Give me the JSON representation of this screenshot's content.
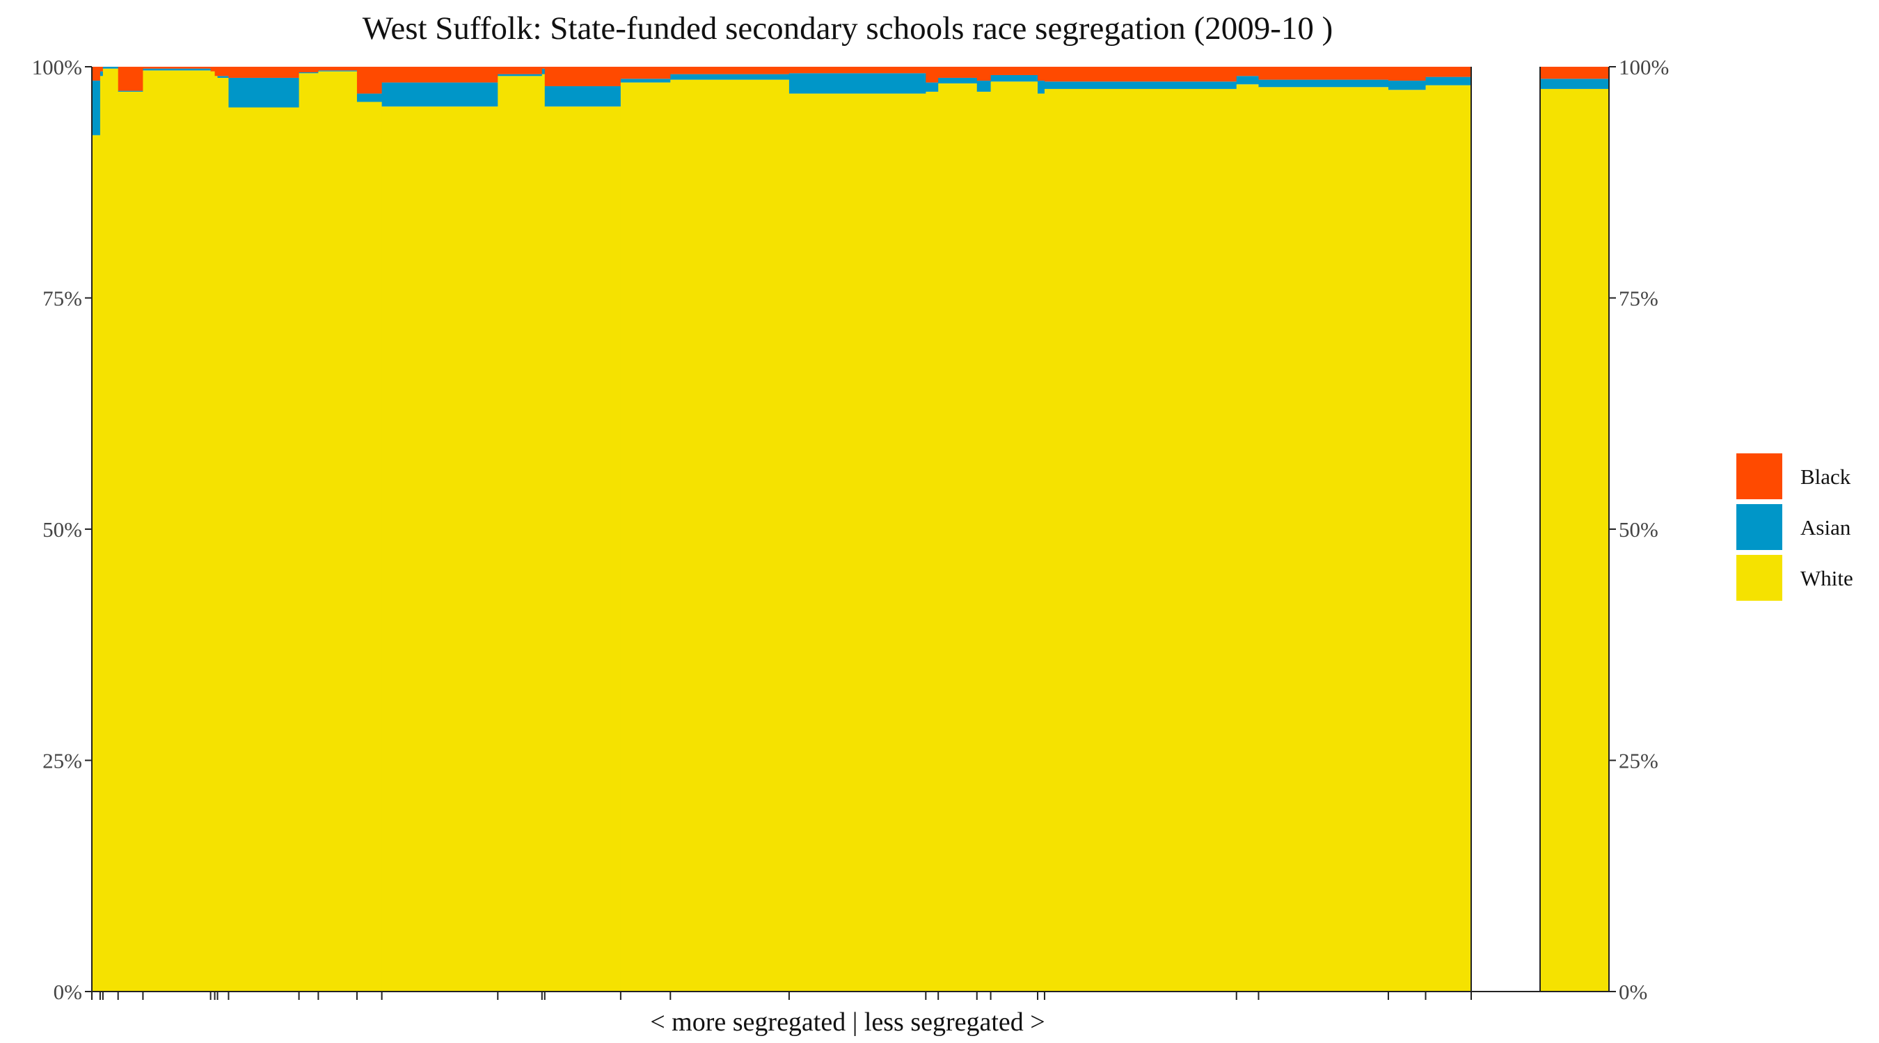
{
  "chart_data": {
    "type": "bar",
    "subtype": "stacked-100-percent-variable-width",
    "title": "West Suffolk: State-funded secondary schools race segregation (2009-10 )",
    "xlabel": "< more segregated | less segregated >",
    "ylabel": "",
    "ylim": [
      0,
      100
    ],
    "y_ticks": [
      "0%",
      "25%",
      "50%",
      "75%",
      "100%"
    ],
    "stack_order": [
      "White",
      "Asian",
      "Black"
    ],
    "legend": [
      {
        "name": "Black",
        "color": "#FF4A00"
      },
      {
        "name": "Asian",
        "color": "#0096C8"
      },
      {
        "name": "White",
        "color": "#F5E200"
      }
    ],
    "schools": [
      {
        "share": 0.6,
        "White": 92.6,
        "Asian": 5.9,
        "Black": 1.5
      },
      {
        "share": 0.2,
        "White": 99.0,
        "Asian": 0.5,
        "Black": 0.5
      },
      {
        "share": 1.1,
        "White": 99.8,
        "Asian": 0.2,
        "Black": 0.0
      },
      {
        "share": 1.8,
        "White": 97.3,
        "Asian": 0.1,
        "Black": 2.6
      },
      {
        "share": 4.9,
        "White": 99.6,
        "Asian": 0.2,
        "Black": 0.2
      },
      {
        "share": 0.3,
        "White": 99.5,
        "Asian": 0.0,
        "Black": 0.5
      },
      {
        "share": 0.2,
        "White": 99.0,
        "Asian": 0.0,
        "Black": 1.0
      },
      {
        "share": 0.8,
        "White": 98.8,
        "Asian": 0.2,
        "Black": 1.0
      },
      {
        "share": 5.1,
        "White": 95.6,
        "Asian": 3.2,
        "Black": 1.2
      },
      {
        "share": 1.4,
        "White": 99.3,
        "Asian": 0.1,
        "Black": 0.6
      },
      {
        "share": 2.8,
        "White": 99.5,
        "Asian": 0.1,
        "Black": 0.4
      },
      {
        "share": 1.8,
        "White": 96.2,
        "Asian": 0.9,
        "Black": 2.9
      },
      {
        "share": 8.4,
        "White": 95.7,
        "Asian": 2.6,
        "Black": 1.7
      },
      {
        "share": 3.2,
        "White": 99.0,
        "Asian": 0.2,
        "Black": 0.8
      },
      {
        "share": 0.2,
        "White": 99.2,
        "Asian": 0.6,
        "Black": 0.2
      },
      {
        "share": 5.5,
        "White": 95.7,
        "Asian": 2.2,
        "Black": 2.1
      },
      {
        "share": 3.6,
        "White": 98.3,
        "Asian": 0.4,
        "Black": 1.3
      },
      {
        "share": 8.6,
        "White": 98.6,
        "Asian": 0.6,
        "Black": 0.8
      },
      {
        "share": 9.9,
        "White": 97.1,
        "Asian": 2.2,
        "Black": 0.7
      },
      {
        "share": 0.9,
        "White": 97.3,
        "Asian": 1.0,
        "Black": 1.7
      },
      {
        "share": 2.8,
        "White": 98.2,
        "Asian": 0.6,
        "Black": 1.2
      },
      {
        "share": 1.0,
        "White": 97.3,
        "Asian": 1.2,
        "Black": 1.5
      },
      {
        "share": 3.4,
        "White": 98.4,
        "Asian": 0.7,
        "Black": 0.9
      },
      {
        "share": 0.5,
        "White": 97.1,
        "Asian": 1.4,
        "Black": 1.5
      },
      {
        "share": 13.9,
        "White": 97.6,
        "Asian": 0.8,
        "Black": 1.6
      },
      {
        "share": 1.6,
        "White": 98.1,
        "Asian": 0.9,
        "Black": 1.0
      },
      {
        "share": 9.4,
        "White": 97.8,
        "Asian": 0.8,
        "Black": 1.4
      },
      {
        "share": 2.7,
        "White": 97.5,
        "Asian": 1.0,
        "Black": 1.5
      },
      {
        "share": 3.3,
        "White": 98.0,
        "Asian": 0.9,
        "Black": 1.1
      }
    ],
    "overall": {
      "White": 97.6,
      "Asian": 1.1,
      "Black": 1.3
    }
  }
}
